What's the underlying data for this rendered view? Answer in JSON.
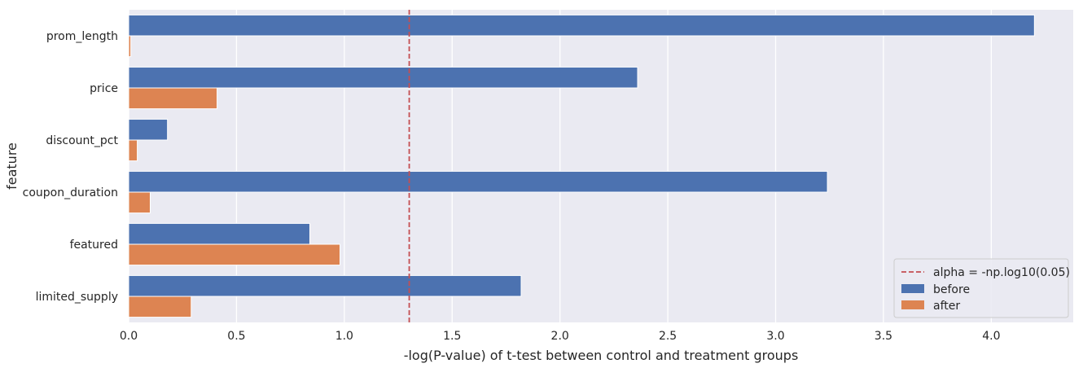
{
  "chart_data": {
    "type": "bar",
    "orientation": "horizontal",
    "title": "",
    "xlabel": "-log(P-value) of t-test between control and treatment groups",
    "ylabel": "feature",
    "xlim": [
      0,
      4.38
    ],
    "xticks": [
      0.0,
      0.5,
      1.0,
      1.5,
      2.0,
      2.5,
      3.0,
      3.5,
      4.0
    ],
    "xtick_labels": [
      "0.0",
      "0.5",
      "1.0",
      "1.5",
      "2.0",
      "2.5",
      "3.0",
      "3.5",
      "4.0"
    ],
    "grid": true,
    "categories": [
      "prom_length",
      "price",
      "discount_pct",
      "coupon_duration",
      "featured",
      "limited_supply"
    ],
    "series": [
      {
        "name": "before",
        "color": "#4c72b0",
        "values": [
          4.2,
          2.36,
          0.18,
          3.24,
          0.84,
          1.82
        ]
      },
      {
        "name": "after",
        "color": "#dd8452",
        "values": [
          0.01,
          0.41,
          0.04,
          0.1,
          0.98,
          0.29
        ]
      }
    ],
    "reference_line": {
      "label": "alpha = -np.log10(0.05)",
      "value": 1.301,
      "orientation": "vertical",
      "style": "dashed",
      "color": "#c44e52"
    },
    "legend_position": "lower-right",
    "background_color": "#eaeaf2",
    "grid_color": "#ffffff"
  }
}
